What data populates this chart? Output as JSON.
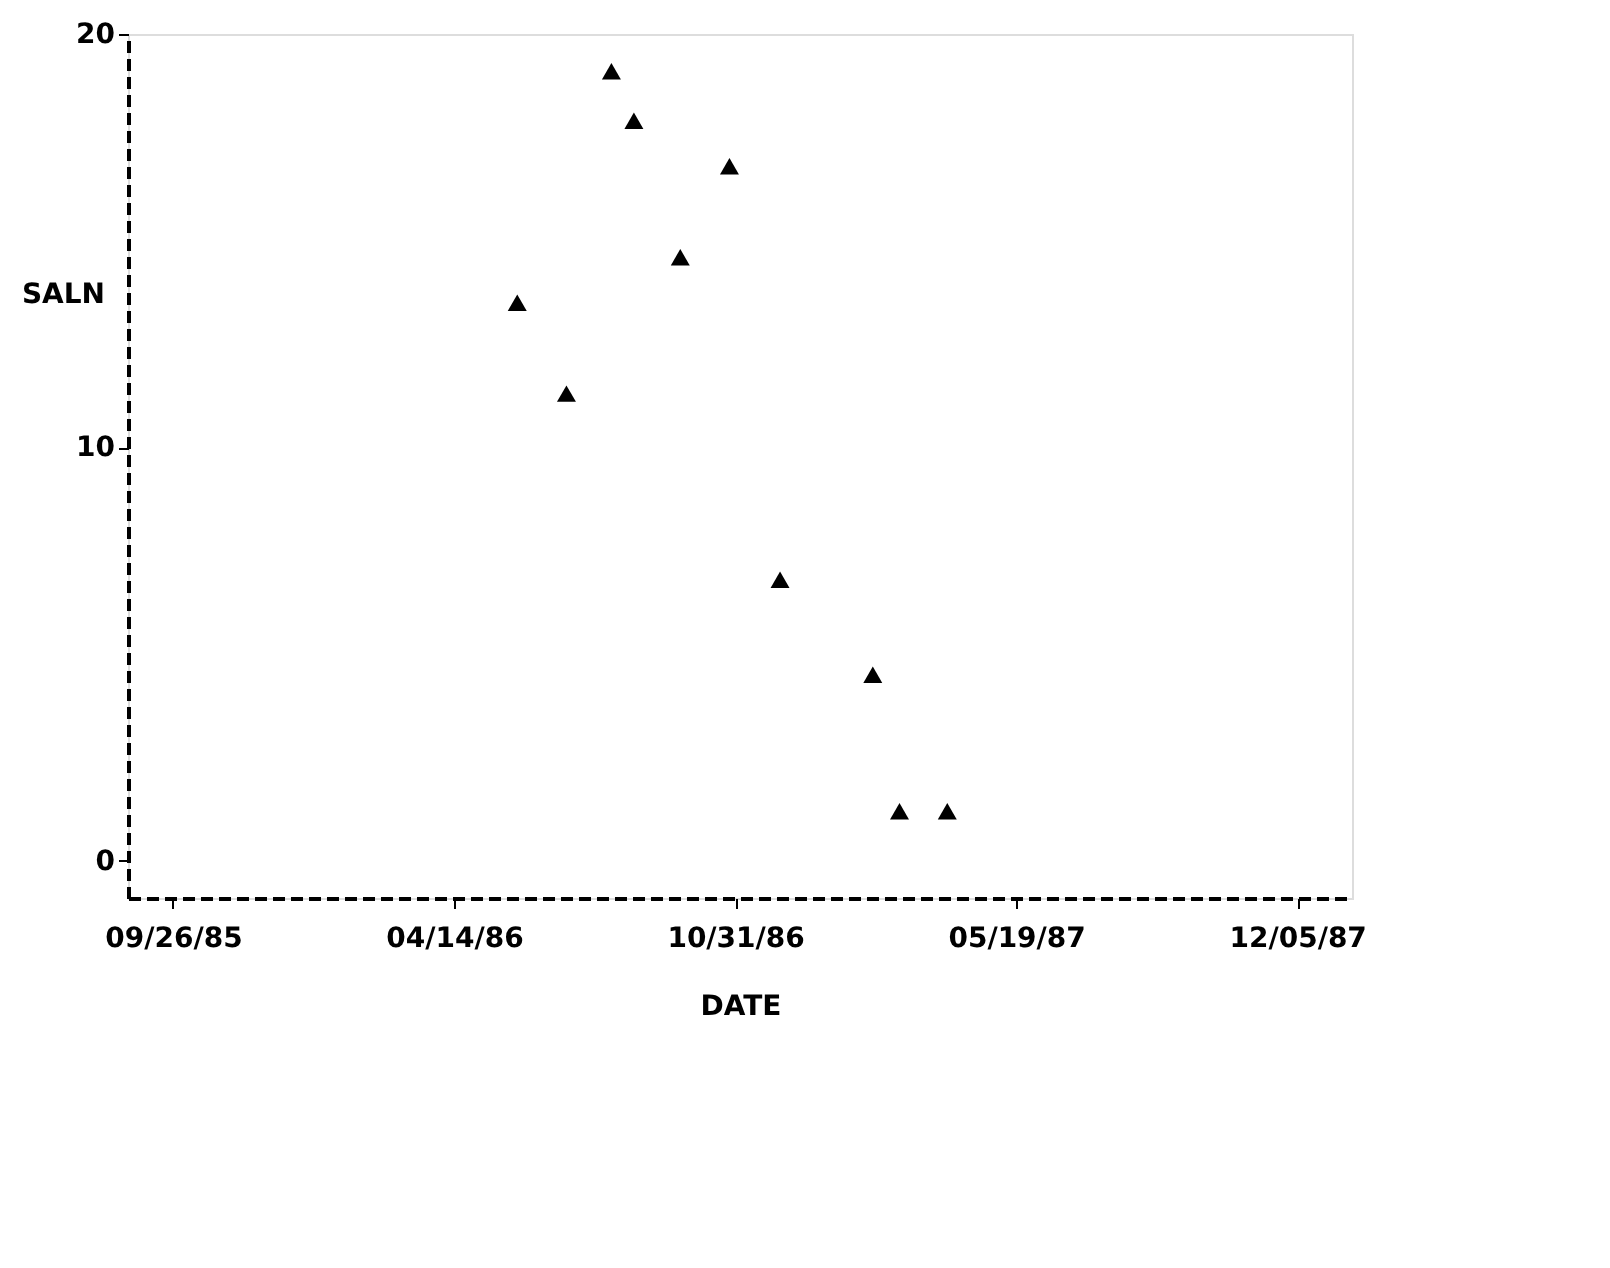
{
  "chart_data": {
    "type": "scatter",
    "xlabel": "DATE",
    "ylabel": "SALN",
    "x": [
      "1986-05-29",
      "1986-07-03",
      "1986-08-04",
      "1986-08-20",
      "1986-09-22",
      "1986-10-27",
      "1986-12-02",
      "1987-02-06",
      "1987-02-25",
      "1987-03-31"
    ],
    "series": [
      {
        "color": "#000000",
        "values": [
          13.5,
          11.3,
          19.1,
          17.9,
          14.6,
          16.8,
          6.8,
          4.5,
          1.2,
          1.2
        ]
      }
    ],
    "xlim": [
      "1985-08-25",
      "1988-01-13"
    ],
    "xticks": [
      {
        "value": "1985-09-26",
        "label": "09/26/85"
      },
      {
        "value": "1986-04-14",
        "label": "04/14/86"
      },
      {
        "value": "1986-10-31",
        "label": "10/31/86"
      },
      {
        "value": "1987-05-19",
        "label": "05/19/87"
      },
      {
        "value": "1987-12-05",
        "label": "12/05/87"
      }
    ],
    "ylim": [
      -0.9,
      20
    ],
    "yticks": [
      0,
      10,
      20
    ],
    "grid": false,
    "legend": false,
    "marker": "triangle"
  }
}
